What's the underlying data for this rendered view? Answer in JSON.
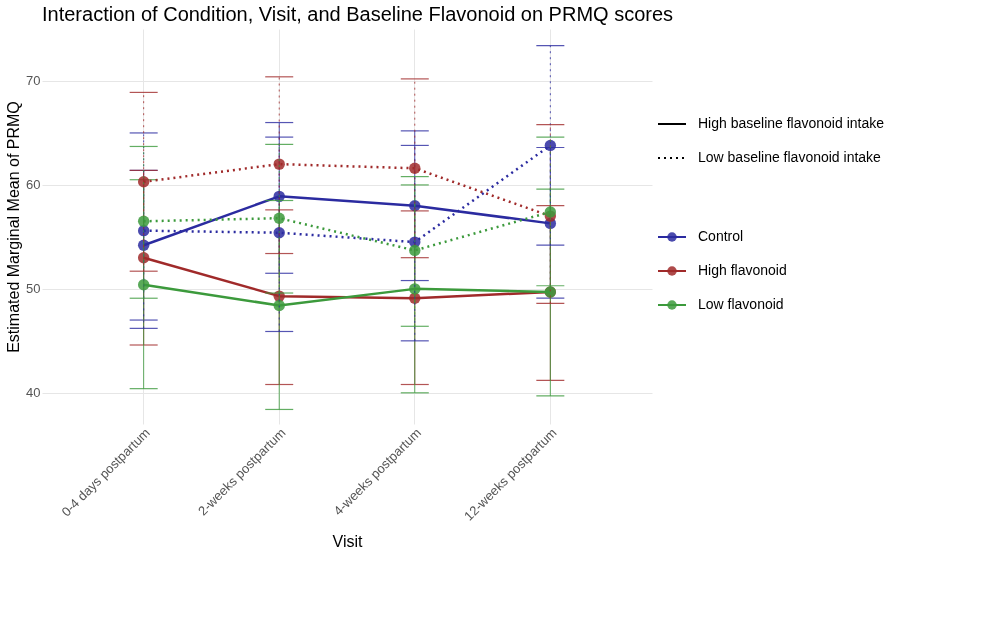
{
  "chart_data": {
    "type": "line",
    "title": "Interaction of Condition, Visit, and Baseline Flavonoid on PRMQ scores",
    "xlabel": "Visit",
    "ylabel": "Estimated Marginal Mean of PRMQ",
    "categories": [
      "0-4 days postpartum",
      "2-weeks postpartum",
      "4-weeks postpartum",
      "12-weeks postpartum"
    ],
    "ylim": [
      37,
      75
    ],
    "yticks": [
      40,
      50,
      60,
      70
    ],
    "grid": true,
    "legend": "right",
    "marker": "circle",
    "annotations": [
      "High baseline flavonoid intake",
      "Low baseline flavonoid intake"
    ],
    "series": [
      {
        "name": "Control",
        "color": "#2b2ba0",
        "line_style": "solid",
        "values": [
          54.2,
          58.9,
          58.0,
          56.3
        ],
        "errors": [
          [
            47.0,
            61.4
          ],
          [
            51.5,
            66.0
          ],
          [
            50.8,
            65.2
          ],
          [
            49.1,
            63.6
          ]
        ]
      },
      {
        "name": "High flavonoid",
        "color": "#a02a2a",
        "line_style": "solid",
        "values": [
          53.0,
          49.3,
          49.1,
          49.7
        ],
        "errors": [
          [
            44.6,
            61.4
          ],
          [
            40.8,
            57.6
          ],
          [
            40.8,
            57.5
          ],
          [
            41.2,
            58.0
          ]
        ]
      },
      {
        "name": "Low flavonoid",
        "color": "#3c9a3c",
        "line_style": "solid",
        "values": [
          50.4,
          48.4,
          50.0,
          49.7
        ],
        "errors": [
          [
            40.4,
            60.5
          ],
          [
            38.4,
            58.5
          ],
          [
            40.0,
            60.0
          ],
          [
            39.7,
            59.6
          ]
        ]
      },
      {
        "color": "#2b2ba0",
        "line_style": "dotted",
        "values": [
          55.6,
          55.4,
          54.5,
          63.8
        ],
        "errors": [
          [
            46.2,
            65.0
          ],
          [
            45.9,
            64.6
          ],
          [
            45.0,
            63.8
          ],
          [
            54.2,
            73.4
          ]
        ]
      },
      {
        "color": "#a02a2a",
        "line_style": "dotted",
        "values": [
          60.3,
          62.0,
          61.6,
          57.0
        ],
        "errors": [
          [
            51.7,
            68.9
          ],
          [
            53.4,
            70.4
          ],
          [
            53.0,
            70.2
          ],
          [
            48.6,
            65.8
          ]
        ]
      },
      {
        "color": "#3c9a3c",
        "line_style": "dotted",
        "values": [
          56.5,
          56.8,
          53.7,
          57.4
        ],
        "errors": [
          [
            49.1,
            63.7
          ],
          [
            49.6,
            63.9
          ],
          [
            46.4,
            60.8
          ],
          [
            50.3,
            64.6
          ]
        ]
      }
    ]
  }
}
